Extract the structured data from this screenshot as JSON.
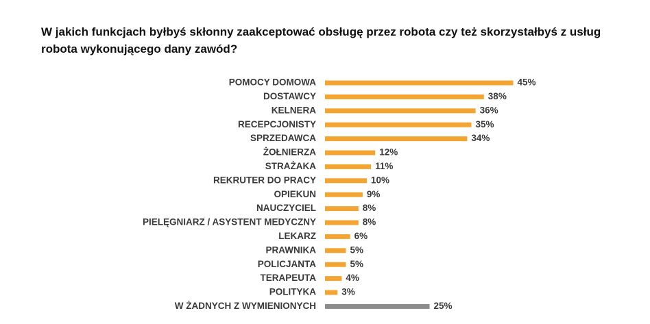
{
  "chart_data": {
    "type": "bar",
    "orientation": "horizontal",
    "title": "W jakich funkcjach byłbyś skłonny zaakceptować obsługę przez robota czy też skorzystałbyś z usług robota wykonującego dany zawód?",
    "categories": [
      "POMOCY DOMOWA",
      "DOSTAWCY",
      "KELNERA",
      "RECEPCJONISTY",
      "SPRZEDAWCA",
      "ŻOŁNIERZA",
      "STRAŻAKA",
      "REKRUTER DO PRACY",
      "OPIEKUN",
      "NAUCZYCIEL",
      "PIELĘGNIARZ / ASYSTENT MEDYCZNY",
      "LEKARZ",
      "PRAWNIKA",
      "POLICJANTA",
      "TERAPEUTA",
      "POLITYKA",
      "W ŻADNYCH Z WYMIENIONYCH"
    ],
    "values": [
      45,
      38,
      36,
      35,
      34,
      12,
      11,
      10,
      9,
      8,
      8,
      6,
      5,
      5,
      4,
      3,
      25
    ],
    "value_labels": [
      "45%",
      "38%",
      "36%",
      "35%",
      "34%",
      "12%",
      "11%",
      "10%",
      "9%",
      "8%",
      "8%",
      "6%",
      "5%",
      "5%",
      "4%",
      "3%",
      "25%"
    ],
    "colors": [
      "#f3a533",
      "#f3a533",
      "#f3a533",
      "#f3a533",
      "#f3a533",
      "#f3a533",
      "#f3a533",
      "#f3a533",
      "#f3a533",
      "#f3a533",
      "#f3a533",
      "#f3a533",
      "#f3a533",
      "#f3a533",
      "#f3a533",
      "#f3a533",
      "#8c8c8c"
    ]
  }
}
